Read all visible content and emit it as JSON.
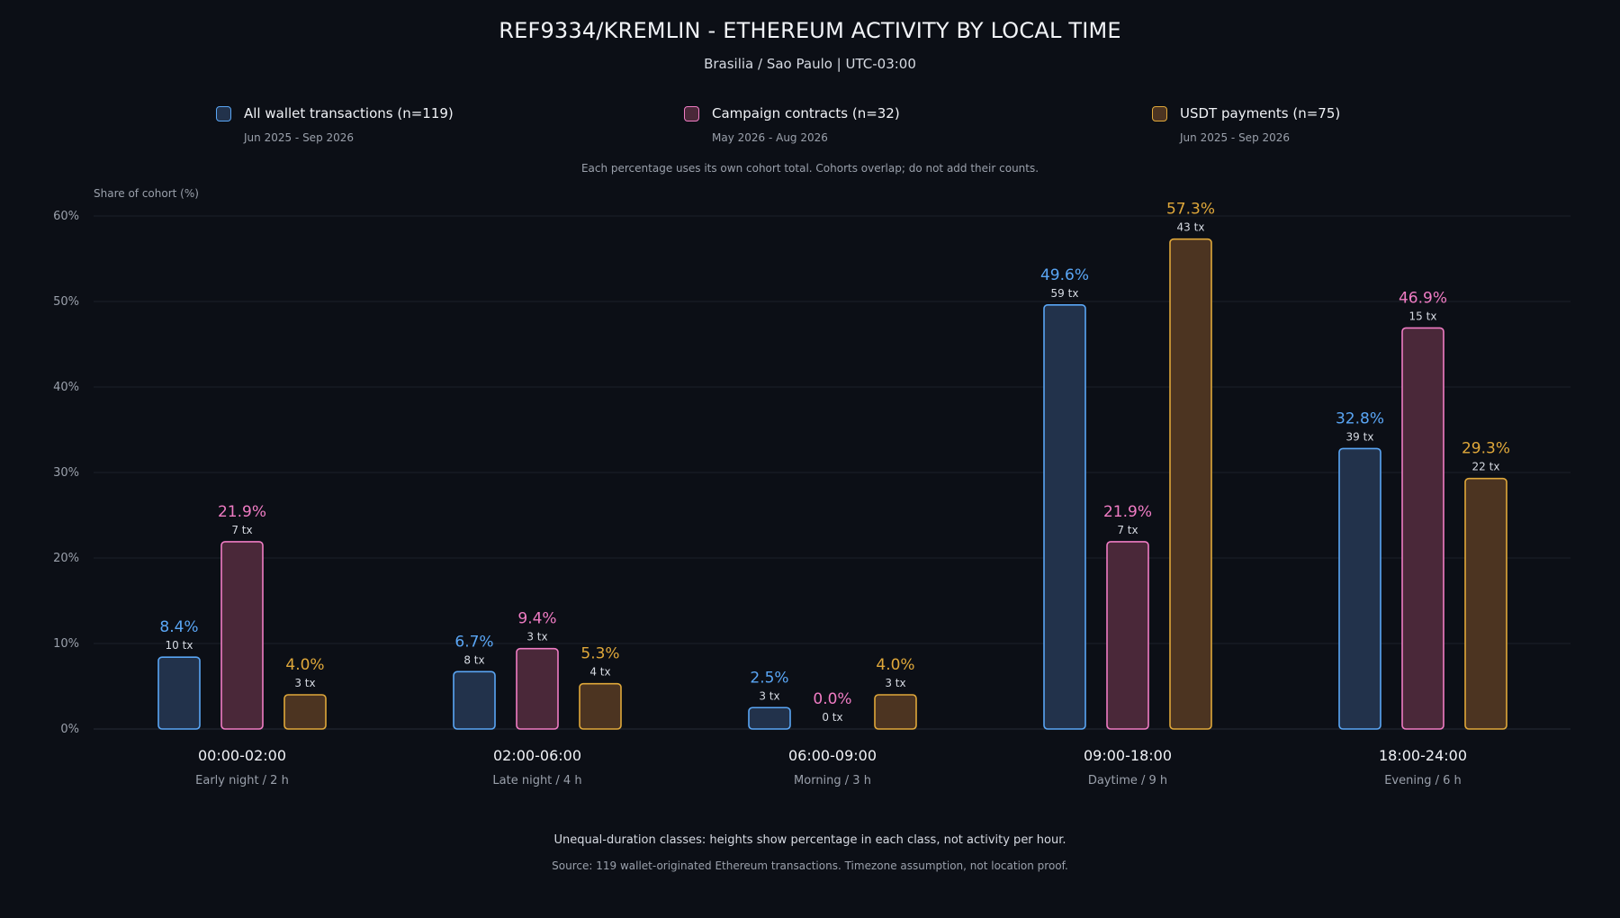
{
  "header": {
    "title": "REF9334/KREMLIN - ETHEREUM ACTIVITY BY LOCAL TIME",
    "subtitle": "Brasilia / Sao Paulo | UTC-03:00"
  },
  "legend": [
    {
      "label": "All wallet transactions (n=119)",
      "range": "Jun 2025 - Sep 2026"
    },
    {
      "label": "Campaign contracts (n=32)",
      "range": "May 2026 - Aug 2026"
    },
    {
      "label": "USDT payments (n=75)",
      "range": "Jun 2025 - Sep 2026"
    }
  ],
  "cohort_note": "Each percentage uses its own cohort total. Cohorts overlap; do not add their counts.",
  "footer": {
    "note": "Unequal-duration classes: heights show percentage in each class, not activity per hour.",
    "source": "Source: 119 wallet-originated Ethereum transactions. Timezone assumption, not location proof."
  },
  "chart_data": {
    "type": "bar",
    "ylabel": "Share of cohort (%)",
    "ylim": [
      0,
      60
    ],
    "yticks": [
      0,
      10,
      20,
      30,
      40,
      50,
      60
    ],
    "ytick_labels": [
      "0%",
      "10%",
      "20%",
      "30%",
      "40%",
      "50%",
      "60%"
    ],
    "grid": true,
    "legend_position": "top",
    "categories": [
      "00:00-02:00",
      "02:00-06:00",
      "06:00-09:00",
      "09:00-18:00",
      "18:00-24:00"
    ],
    "category_sublabels": [
      "Early night / 2 h",
      "Late night / 4 h",
      "Morning / 3 h",
      "Daytime / 9 h",
      "Evening / 6 h"
    ],
    "series": [
      {
        "name": "All wallet transactions (n=119)",
        "values": [
          8.4,
          6.7,
          2.5,
          49.6,
          32.8
        ],
        "value_labels": [
          "8.4%",
          "6.7%",
          "2.5%",
          "49.6%",
          "32.8%"
        ],
        "count_labels": [
          "10 tx",
          "8 tx",
          "3 tx",
          "59 tx",
          "39 tx"
        ],
        "stroke": "#5aa6f5",
        "fill": "#22324b"
      },
      {
        "name": "Campaign contracts (n=32)",
        "values": [
          21.9,
          9.4,
          0.0,
          21.9,
          46.9
        ],
        "value_labels": [
          "21.9%",
          "9.4%",
          "0.0%",
          "21.9%",
          "46.9%"
        ],
        "count_labels": [
          "7 tx",
          "3 tx",
          "0 tx",
          "7 tx",
          "15 tx"
        ],
        "stroke": "#f07cc4",
        "fill": "#4a2839"
      },
      {
        "name": "USDT payments (n=75)",
        "values": [
          4.0,
          5.3,
          4.0,
          57.3,
          29.3
        ],
        "value_labels": [
          "4.0%",
          "5.3%",
          "4.0%",
          "57.3%",
          "29.3%"
        ],
        "count_labels": [
          "3 tx",
          "4 tx",
          "3 tx",
          "43 tx",
          "22 tx"
        ],
        "stroke": "#e0a83a",
        "fill": "#4c3421"
      }
    ]
  }
}
